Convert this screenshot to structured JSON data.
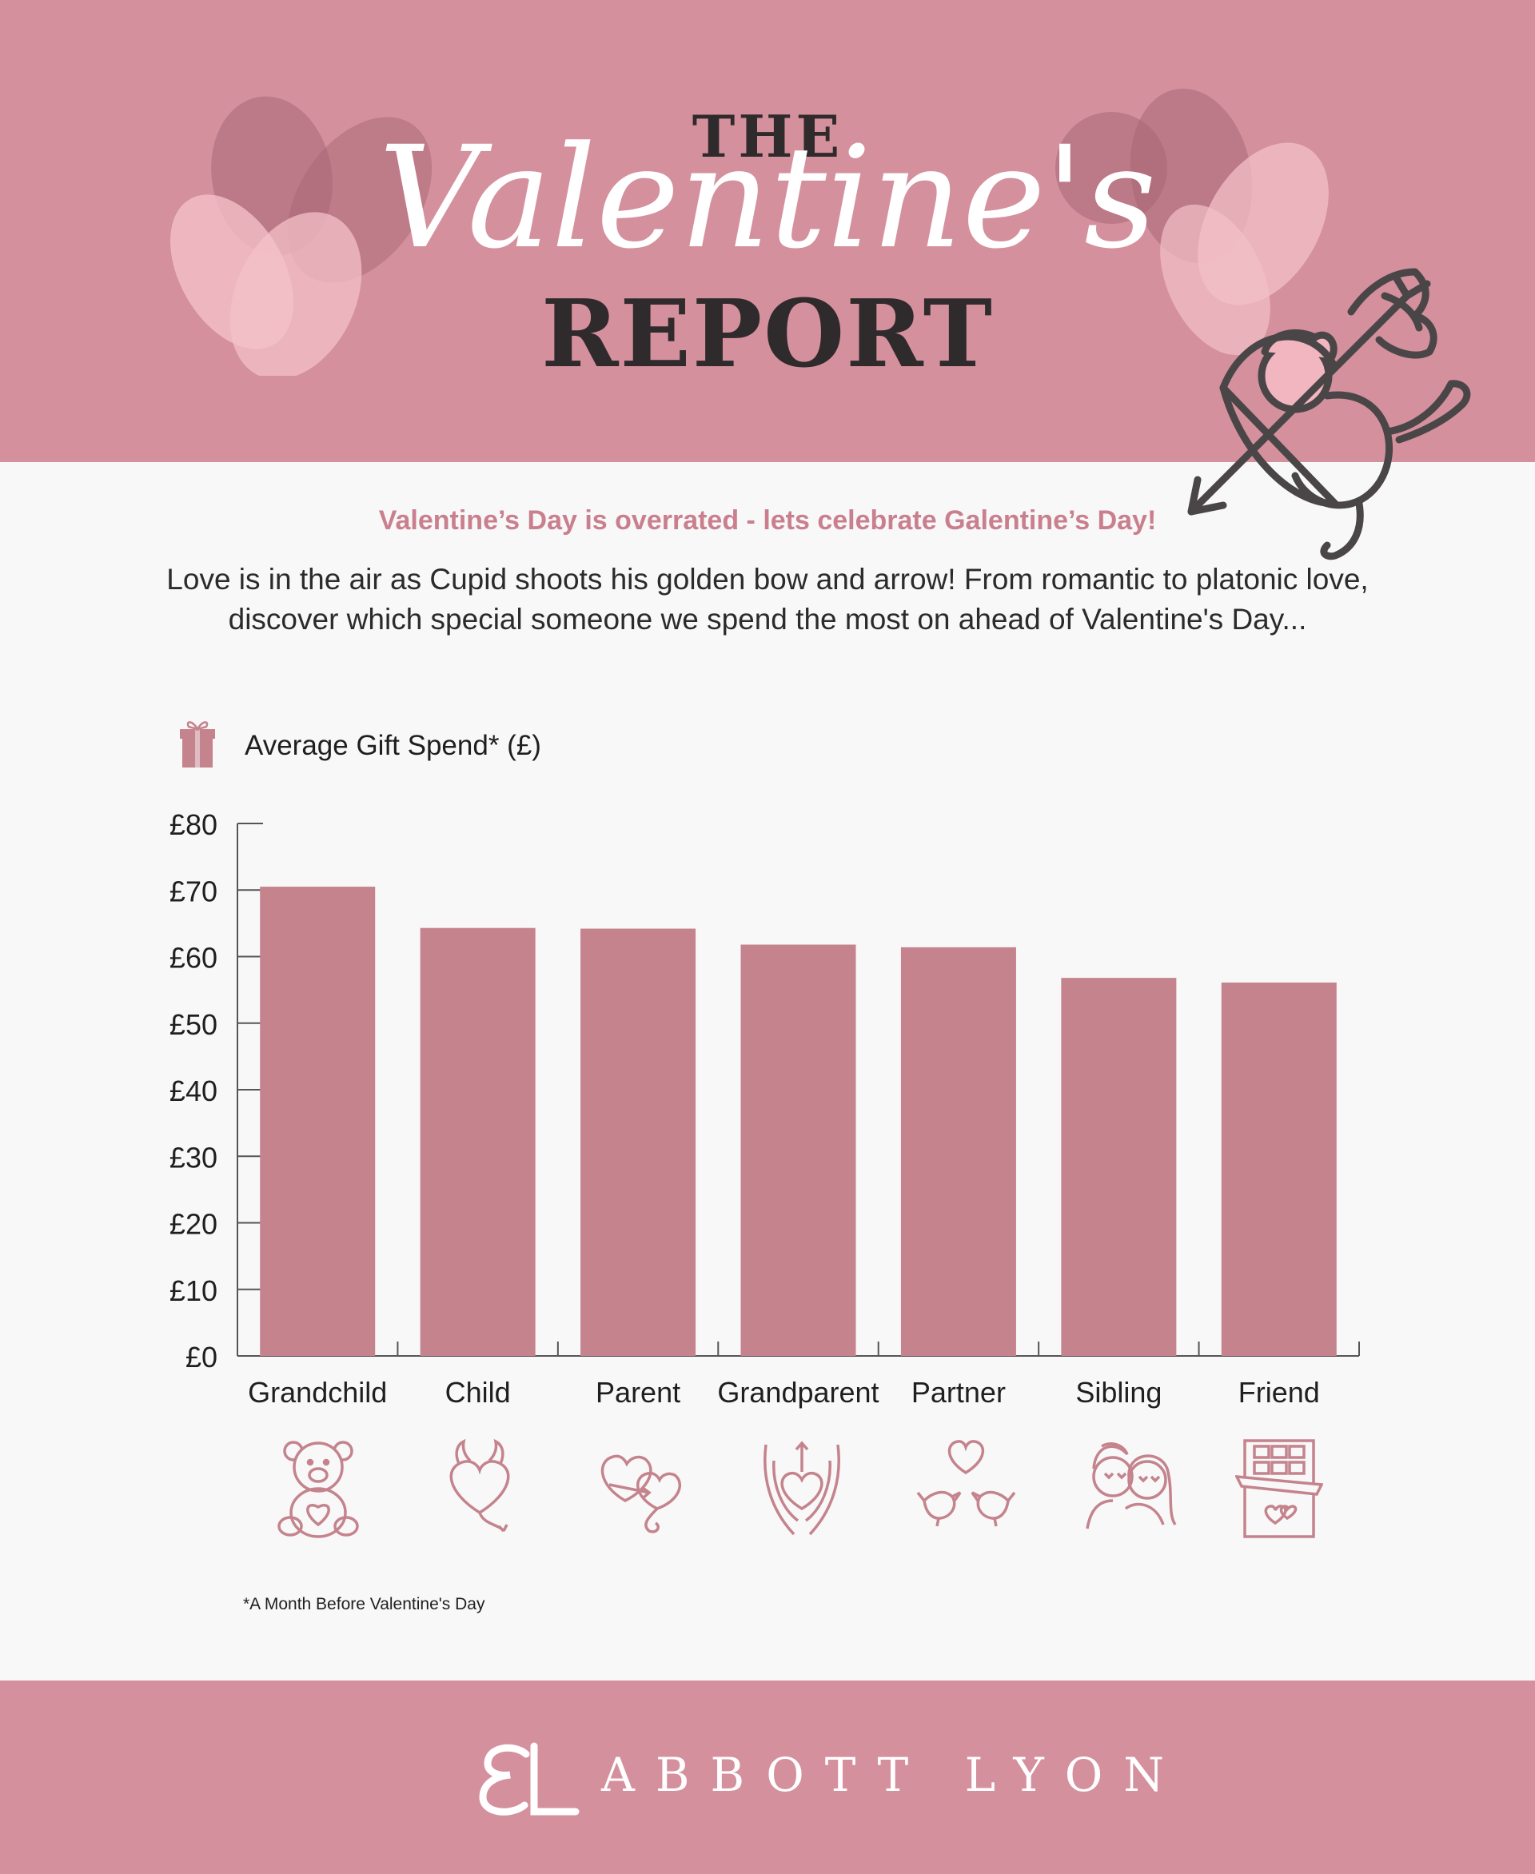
{
  "header": {
    "title_the": "THE",
    "title_main": "Valentine's",
    "title_report": "REPORT"
  },
  "intro": {
    "tagline": "Valentine’s Day is overrated - lets celebrate Galentine’s Day!",
    "body": "Love is in the air as Cupid shoots his golden bow and arrow! From romantic to platonic love, discover which special someone we spend the most on ahead of Valentine's Day..."
  },
  "legend": {
    "label": "Average Gift Spend* (£)",
    "icon": "gift-box-icon"
  },
  "chart_data": {
    "type": "bar",
    "ylabel": "Average Gift Spend* (£)",
    "categories": [
      "Grandchild",
      "Child",
      "Parent",
      "Grandparent",
      "Partner",
      "Sibling",
      "Friend"
    ],
    "values": [
      70.5,
      64.3,
      64.2,
      61.8,
      61.4,
      56.8,
      56.1
    ],
    "ylim": [
      0,
      80
    ],
    "yticks": [
      "£0",
      "£10",
      "£20",
      "£30",
      "£40",
      "£50",
      "£60",
      "£70",
      "£80"
    ],
    "grid": false,
    "bar_color": "#c4838d"
  },
  "category_icons": [
    "teddy-bear-icon",
    "devil-heart-icon",
    "linked-hearts-icon",
    "hands-heart-icon",
    "love-birds-icon",
    "couple-icon",
    "chocolate-bar-icon"
  ],
  "footnote": "*A Month Before Valentine's Day",
  "footer": {
    "brand": "ABBOTT LYON",
    "logo": "aL"
  },
  "colors": {
    "header_bg": "#d4909d",
    "accent": "#c97f8e",
    "bar": "#c4838d",
    "page_bg": "#f8f8f8"
  }
}
